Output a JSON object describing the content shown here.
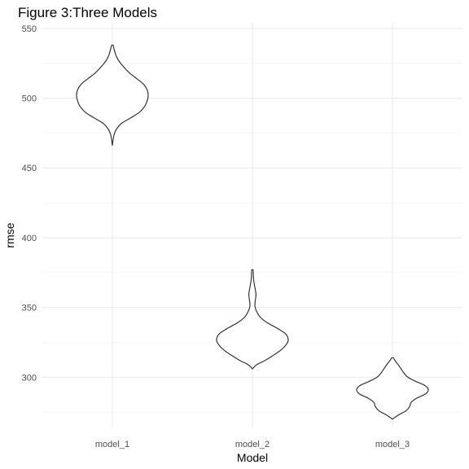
{
  "chart_data": {
    "type": "violin",
    "title": "Figure 3:Three Models",
    "xlabel": "Model",
    "ylabel": "rmse",
    "categories": [
      "model_1",
      "model_2",
      "model_3"
    ],
    "ylim": [
      264,
      554
    ],
    "yticks": [
      300,
      350,
      400,
      450,
      500,
      550
    ],
    "grid": true,
    "legend": "none",
    "series": [
      {
        "category": "model_1",
        "min": 466,
        "max": 538,
        "density": [
          [
            466,
            0.0
          ],
          [
            470,
            0.02
          ],
          [
            474,
            0.05
          ],
          [
            478,
            0.12
          ],
          [
            482,
            0.26
          ],
          [
            486,
            0.52
          ],
          [
            490,
            0.76
          ],
          [
            494,
            0.9
          ],
          [
            498,
            0.97
          ],
          [
            502,
            1.0
          ],
          [
            506,
            0.97
          ],
          [
            510,
            0.87
          ],
          [
            514,
            0.68
          ],
          [
            518,
            0.48
          ],
          [
            522,
            0.33
          ],
          [
            526,
            0.2
          ],
          [
            530,
            0.11
          ],
          [
            534,
            0.06
          ],
          [
            538,
            0.02
          ]
        ]
      },
      {
        "category": "model_2",
        "min": 306,
        "max": 377,
        "density": [
          [
            306,
            0.0
          ],
          [
            309,
            0.12
          ],
          [
            312,
            0.35
          ],
          [
            316,
            0.6
          ],
          [
            320,
            0.82
          ],
          [
            324,
            0.96
          ],
          [
            327,
            1.0
          ],
          [
            331,
            0.93
          ],
          [
            335,
            0.7
          ],
          [
            339,
            0.42
          ],
          [
            343,
            0.22
          ],
          [
            347,
            0.12
          ],
          [
            351,
            0.07
          ],
          [
            355,
            0.08
          ],
          [
            359,
            0.1
          ],
          [
            363,
            0.08
          ],
          [
            367,
            0.05
          ],
          [
            371,
            0.03
          ],
          [
            377,
            0.02
          ]
        ]
      },
      {
        "category": "model_3",
        "min": 270,
        "max": 314,
        "density": [
          [
            270,
            0.0
          ],
          [
            273,
            0.17
          ],
          [
            276,
            0.38
          ],
          [
            279,
            0.48
          ],
          [
            282,
            0.52
          ],
          [
            285,
            0.68
          ],
          [
            288,
            0.92
          ],
          [
            291,
            1.0
          ],
          [
            294,
            0.91
          ],
          [
            297,
            0.65
          ],
          [
            300,
            0.43
          ],
          [
            303,
            0.32
          ],
          [
            306,
            0.24
          ],
          [
            309,
            0.16
          ],
          [
            312,
            0.07
          ],
          [
            314,
            0.02
          ]
        ]
      }
    ]
  }
}
